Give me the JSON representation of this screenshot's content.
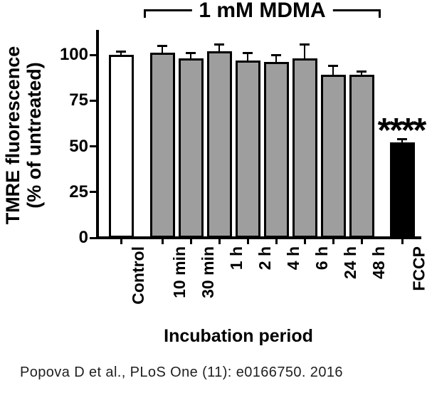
{
  "figure": {
    "bracket_label": "1 mM MDMA",
    "significance_label": "****",
    "xlabel": "Incubation period",
    "ylabel_line1": "TMRE fluorescence",
    "ylabel_line2": "(% of untreated)",
    "citation": "Popova D et al., PLoS One (11): e0166750. 2016"
  },
  "chart_data": {
    "type": "bar",
    "title": "1 mM MDMA",
    "xlabel": "Incubation period",
    "ylabel": "TMRE fluorescence (% of untreated)",
    "categories": [
      "Control",
      "10 min",
      "30 min",
      "1 h",
      "2 h",
      "4 h",
      "6 h",
      "24 h",
      "48 h",
      "FCCP"
    ],
    "values": [
      100,
      101,
      98,
      102,
      97,
      96,
      98,
      89,
      89,
      52
    ],
    "errors_upper": [
      2,
      4,
      3,
      4,
      4,
      4,
      8,
      5,
      2,
      2
    ],
    "groups": [
      "control",
      "mdma",
      "mdma",
      "mdma",
      "mdma",
      "mdma",
      "mdma",
      "mdma",
      "mdma",
      "fccp"
    ],
    "bar_colors": {
      "control": "#ffffff",
      "mdma": "#9e9e9e",
      "fccp": "#000000"
    },
    "axis_color": "#000000",
    "yticks": [
      0,
      25,
      50,
      75,
      100
    ],
    "ylim": [
      0,
      115
    ],
    "grid": false,
    "legend": false,
    "error_bars": "upper only, with caps",
    "bracket": {
      "label": "1 mM MDMA",
      "from_category": "10 min",
      "to_category": "48 h"
    },
    "significance": {
      "category": "FCCP",
      "label": "****"
    }
  }
}
